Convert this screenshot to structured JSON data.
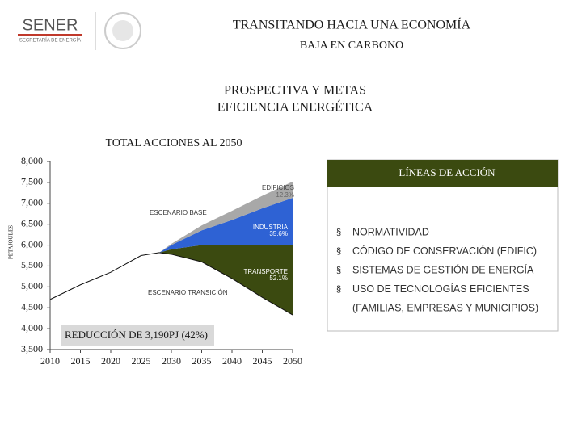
{
  "header": {
    "logo": "SENER",
    "logo_sub": "SECRETARÍA DE ENERGÍA",
    "title_1": "TRANSITANDO HACIA UNA ECONOMÍA",
    "title_2": "BAJA EN CARBONO",
    "subtitle_1": "PROSPECTIVA Y METAS",
    "subtitle_2": "EFICIENCIA ENERGÉTICA"
  },
  "chart_data": {
    "type": "area",
    "title": "TOTAL ACCIONES AL 2050",
    "y_label": "PETAJOULES",
    "x": [
      2010,
      2015,
      2020,
      2025,
      2028,
      2030,
      2035,
      2040,
      2045,
      2050
    ],
    "xlim": [
      2010,
      2050
    ],
    "xticks": [
      2010,
      2015,
      2020,
      2025,
      2030,
      2035,
      2040,
      2045,
      2050
    ],
    "ylim": [
      3500,
      8000
    ],
    "yticks": [
      {
        "value": 3500,
        "label": "3,500"
      },
      {
        "value": 4000,
        "label": "4,000"
      },
      {
        "value": 4500,
        "label": "4,500"
      },
      {
        "value": 5000,
        "label": "5,000"
      },
      {
        "value": 5500,
        "label": "5,500"
      },
      {
        "value": 6000,
        "label": "6,000"
      },
      {
        "value": 6500,
        "label": "6,500"
      },
      {
        "value": 7000,
        "label": "7,000"
      },
      {
        "value": 7500,
        "label": "7,500"
      },
      {
        "value": 8000,
        "label": "8,000"
      }
    ],
    "baseline": {
      "name": "ESCENARIO TRANSICIÓN",
      "color": "#111111",
      "values": [
        4700,
        5050,
        5350,
        5750,
        5820,
        5780,
        5600,
        5200,
        4750,
        4330
      ]
    },
    "series": [
      {
        "name": "TRANSPORTE",
        "label": "52.1%",
        "color": "#3b4a10",
        "values": [
          0,
          0,
          0,
          0,
          0,
          120,
          400,
          800,
          1250,
          1662
        ]
      },
      {
        "name": "INDUSTRIA",
        "label": "35.6%",
        "color": "#2e62d4",
        "values": [
          0,
          0,
          0,
          0,
          0,
          100,
          350,
          600,
          880,
          1136
        ]
      },
      {
        "name": "EDIFICIOS",
        "label": "12.3%",
        "color": "#a8a8a8",
        "values": [
          0,
          0,
          0,
          0,
          0,
          30,
          120,
          220,
          300,
          392
        ]
      }
    ],
    "base_label": "ESCENARIO BASE",
    "reduction": "REDUCCIÓN DE 3,190PJ (42%)"
  },
  "legend_box": {
    "title": "LÍNEAS DE ACCIÓN",
    "bullet": "§",
    "items": [
      "NORMATIVIDAD",
      "CÓDIGO DE CONSERVACIÓN (EDIFIC)",
      "SISTEMAS DE GESTIÓN DE ENERGÍA",
      "USO DE TECNOLOGÍAS EFICIENTES"
    ],
    "continuation": "(FAMILIAS, EMPRESAS Y MUNICIPIOS)"
  }
}
